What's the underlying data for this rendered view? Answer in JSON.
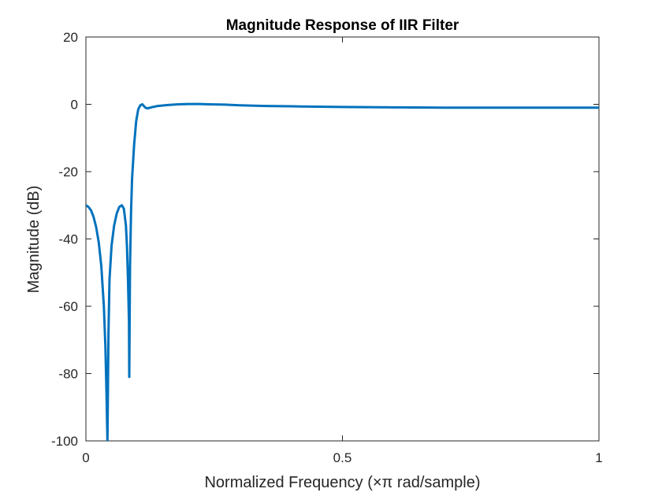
{
  "chart_data": {
    "type": "line",
    "title": "Magnitude Response of IIR Filter",
    "xlabel": "Normalized Frequency (×π rad/sample)",
    "ylabel": "Magnitude (dB)",
    "xlim": [
      0,
      1
    ],
    "ylim": [
      -100,
      20
    ],
    "x_ticks": [
      0,
      0.5,
      1
    ],
    "x_tick_labels": [
      "0",
      "0.5",
      "1"
    ],
    "y_ticks": [
      -100,
      -80,
      -60,
      -40,
      -20,
      0,
      20
    ],
    "y_tick_labels": [
      "-100",
      "-80",
      "-60",
      "-40",
      "-20",
      "0",
      "20"
    ],
    "grid": false,
    "box": true,
    "series": [
      {
        "color": "#0072BD",
        "x": [
          0,
          0.005,
          0.01,
          0.015,
          0.02,
          0.025,
          0.03,
          0.035,
          0.038,
          0.04,
          0.042,
          0.044,
          0.046,
          0.05,
          0.055,
          0.06,
          0.065,
          0.07,
          0.074,
          0.078,
          0.08,
          0.082,
          0.084,
          0.0845,
          0.086,
          0.088,
          0.09,
          0.094,
          0.098,
          0.102,
          0.106,
          0.11,
          0.113,
          0.116,
          0.12,
          0.125,
          0.13,
          0.14,
          0.16,
          0.18,
          0.2,
          0.22,
          0.24,
          0.27,
          0.3,
          0.35,
          0.4,
          0.5,
          0.6,
          0.7,
          0.8,
          0.9,
          1.0
        ],
        "y": [
          -30,
          -30.5,
          -31.5,
          -33.5,
          -36.5,
          -41,
          -48,
          -60,
          -72,
          -85,
          -100,
          -68,
          -52,
          -42,
          -36,
          -32.5,
          -30.5,
          -30,
          -31,
          -36,
          -42,
          -52,
          -65,
          -81,
          -48,
          -32,
          -22,
          -12,
          -5,
          -1.5,
          -0.3,
          0,
          -0.5,
          -1,
          -1.2,
          -1,
          -0.8,
          -0.5,
          -0.2,
          0,
          0.1,
          0.1,
          0,
          -0.1,
          -0.3,
          -0.5,
          -0.6,
          -0.8,
          -0.9,
          -1,
          -1,
          -1,
          -1
        ]
      }
    ]
  }
}
